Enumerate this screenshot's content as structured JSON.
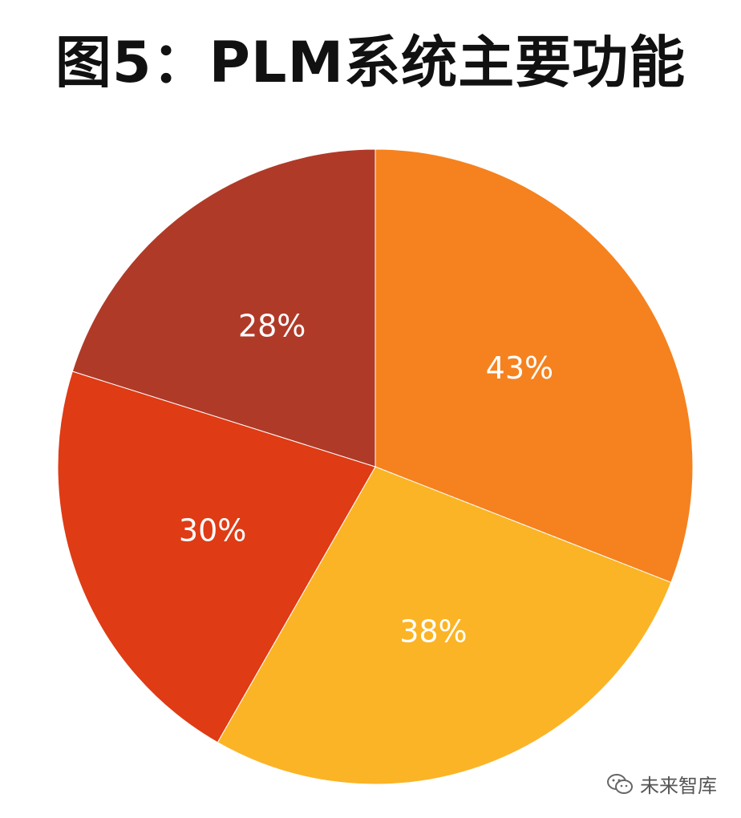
{
  "chart_data": {
    "type": "pie",
    "title": "图5：PLM系统主要功能",
    "slices": [
      {
        "label": "43%",
        "value": 43,
        "color": "#f5821f"
      },
      {
        "label": "38%",
        "value": 38,
        "color": "#fbb425"
      },
      {
        "label": "30%",
        "value": 30,
        "color": "#df3b15"
      },
      {
        "label": "28%",
        "value": 28,
        "color": "#b03a28"
      }
    ],
    "start": "12 o'clock",
    "direction": "clockwise",
    "legend": "none"
  },
  "watermark": {
    "text": "未来智库",
    "icon": "wechat-icon"
  }
}
